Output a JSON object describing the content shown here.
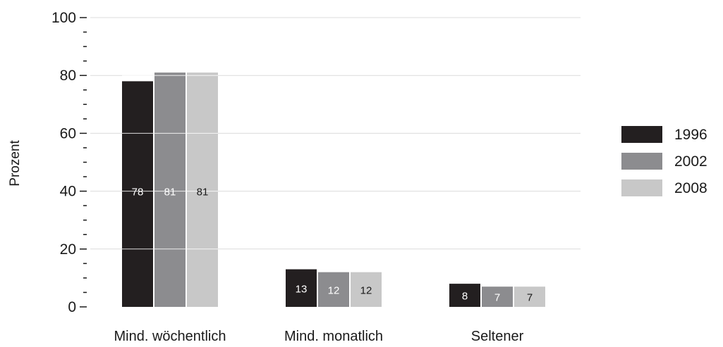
{
  "chart_data": {
    "type": "bar",
    "ylabel": "Prozent",
    "ylim": [
      0,
      100
    ],
    "yticks": [
      0,
      20,
      40,
      60,
      80,
      100
    ],
    "grid": true,
    "legend_position": "right",
    "categories": [
      "Mind. wöchentlich",
      "Mind. monatlich",
      "Seltener"
    ],
    "series": [
      {
        "name": "1996",
        "color": "#231f20",
        "values": [
          78,
          13,
          8
        ]
      },
      {
        "name": "2002",
        "color": "#8c8c8f",
        "values": [
          81,
          12,
          7
        ]
      },
      {
        "name": "2008",
        "color": "#c8c8c8",
        "values": [
          81,
          12,
          7
        ]
      }
    ]
  }
}
